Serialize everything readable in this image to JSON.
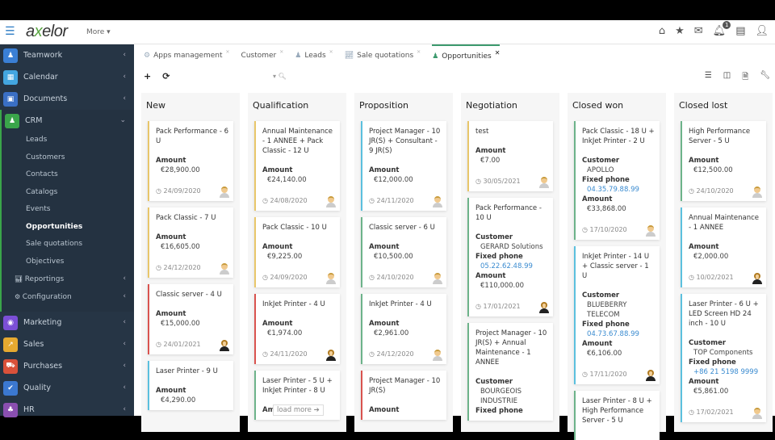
{
  "header": {
    "logo": "axelor",
    "more": "More",
    "notifications": "1"
  },
  "sidebar": {
    "top": [
      {
        "label": "Teamwork",
        "color": "#3a7fd5",
        "icon": "user-icon"
      },
      {
        "label": "Calendar",
        "color": "#43a6e0",
        "icon": "calendar-icon"
      },
      {
        "label": "Documents",
        "color": "#3a6fc4",
        "icon": "document-icon"
      }
    ],
    "crm": {
      "label": "CRM",
      "color": "#3aa54a",
      "items": [
        "Leads",
        "Customers",
        "Contacts",
        "Catalogs",
        "Events",
        "Opportunities",
        "Sale quotations",
        "Objectives"
      ],
      "active": "Opportunities",
      "groups": [
        "Reportings",
        "Configuration"
      ]
    },
    "bottom": [
      {
        "label": "Marketing",
        "color": "#7b4fd6",
        "icon": "marketing-icon"
      },
      {
        "label": "Sales",
        "color": "#e6a930",
        "icon": "chart-icon"
      },
      {
        "label": "Purchases",
        "color": "#d9513a",
        "icon": "cart-icon"
      },
      {
        "label": "Quality",
        "color": "#3b78d0",
        "icon": "check-icon"
      },
      {
        "label": "HR",
        "color": "#8a4fb0",
        "icon": "org-icon"
      }
    ]
  },
  "tabs": [
    {
      "label": "Apps management"
    },
    {
      "label": "Customer"
    },
    {
      "label": "Leads"
    },
    {
      "label": "Sale quotations"
    },
    {
      "label": "Opportunities",
      "active": true
    }
  ],
  "board": {
    "load_more": "load more",
    "columns": [
      {
        "title": "New",
        "cards": [
          {
            "title": "Pack Performance - 6 U",
            "color": "#e8c66a",
            "fields": [
              {
                "label": "Amount",
                "value": "€28,900.00"
              }
            ],
            "date": "24/09/2020",
            "avatar": "male"
          },
          {
            "title": "Pack Classic - 7 U",
            "color": "#e8c66a",
            "fields": [
              {
                "label": "Amount",
                "value": "€16,605.00"
              }
            ],
            "date": "24/12/2020",
            "avatar": "male"
          },
          {
            "title": "Classic server - 4 U",
            "color": "#d9534f",
            "fields": [
              {
                "label": "Amount",
                "value": "€15,000.00"
              }
            ],
            "date": "24/01/2021",
            "avatar": "female"
          },
          {
            "title": "Laser Printer - 9 U",
            "color": "#5bc0de",
            "fields": [
              {
                "label": "Amount",
                "value": "€4,290.00"
              }
            ],
            "date": "",
            "avatar": ""
          }
        ]
      },
      {
        "title": "Qualification",
        "cards": [
          {
            "title": "Annual Maintenance - 1 ANNEE + Pack Classic - 12 U",
            "color": "#e8c66a",
            "fields": [
              {
                "label": "Amount",
                "value": "€24,140.00"
              }
            ],
            "date": "24/08/2020",
            "avatar": "male"
          },
          {
            "title": "Pack Classic - 10 U",
            "color": "#e8c66a",
            "fields": [
              {
                "label": "Amount",
                "value": "€9,225.00"
              }
            ],
            "date": "24/09/2020",
            "avatar": "male"
          },
          {
            "title": "InkJet Printer - 4 U",
            "color": "#d9534f",
            "fields": [
              {
                "label": "Amount",
                "value": "€1,974.00"
              }
            ],
            "date": "24/11/2020",
            "avatar": "female"
          },
          {
            "title": "Laser Printer - 5 U + InkJet Printer - 8 U",
            "color": "#6db38a",
            "fields": [
              {
                "label": "Amount",
                "value": ""
              }
            ],
            "date": "",
            "avatar": ""
          }
        ]
      },
      {
        "title": "Proposition",
        "cards": [
          {
            "title": "Project Manager - 10 JR(S) + Consultant - 9 JR(S)",
            "color": "#5bc0de",
            "fields": [
              {
                "label": "Amount",
                "value": "€12,000.00"
              }
            ],
            "date": "24/11/2020",
            "avatar": "male"
          },
          {
            "title": "Classic server - 6 U",
            "color": "#6db38a",
            "fields": [
              {
                "label": "Amount",
                "value": "€10,500.00"
              }
            ],
            "date": "24/10/2020",
            "avatar": "male"
          },
          {
            "title": "InkJet Printer - 4 U",
            "color": "#6db38a",
            "fields": [
              {
                "label": "Amount",
                "value": "€2,961.00"
              }
            ],
            "date": "24/12/2020",
            "avatar": "male"
          },
          {
            "title": "Project Manager - 10 JR(S)",
            "color": "#d9534f",
            "fields": [
              {
                "label": "Amount",
                "value": ""
              }
            ],
            "date": "",
            "avatar": ""
          }
        ]
      },
      {
        "title": "Negotiation",
        "cards": [
          {
            "title": "test",
            "color": "#e8c66a",
            "fields": [
              {
                "label": "Amount",
                "value": "€7.00"
              }
            ],
            "date": "30/05/2021",
            "avatar": "male"
          },
          {
            "title": "Pack Performance - 10 U",
            "color": "#6db38a",
            "fields": [
              {
                "label": "Customer",
                "value": "GERARD Solutions"
              },
              {
                "label": "Fixed phone",
                "value": "05.22.62.48.99",
                "link": true
              },
              {
                "label": "Amount",
                "value": "€110,000.00"
              }
            ],
            "date": "17/01/2021",
            "avatar": "female"
          },
          {
            "title": "Project Manager - 10 JR(S) + Annual Maintenance - 1 ANNEE",
            "color": "#6db38a",
            "fields": [
              {
                "label": "Customer",
                "value": "BOURGEOIS INDUSTRIE"
              },
              {
                "label": "Fixed phone",
                "value": ""
              }
            ],
            "date": "",
            "avatar": ""
          }
        ]
      },
      {
        "title": "Closed won",
        "cards": [
          {
            "title": "Pack Classic - 18 U + InkJet Printer - 2 U",
            "color": "#6db38a",
            "fields": [
              {
                "label": "Customer",
                "value": "APOLLO"
              },
              {
                "label": "Fixed phone",
                "value": "04.35.79.88.99",
                "link": true
              },
              {
                "label": "Amount",
                "value": "€33,868.00"
              }
            ],
            "date": "17/10/2020",
            "avatar": "male"
          },
          {
            "title": "InkJet Printer - 14 U + Classic server - 1 U",
            "color": "#5bc0de",
            "fields": [
              {
                "label": "Customer",
                "value": "BLUEBERRY TELECOM"
              },
              {
                "label": "Fixed phone",
                "value": "04.73.67.88.99",
                "link": true
              },
              {
                "label": "Amount",
                "value": "€6,106.00"
              }
            ],
            "date": "17/11/2020",
            "avatar": "female"
          },
          {
            "title": "Laser Printer - 8 U + High Performance Server - 5 U",
            "color": "#6db38a",
            "fields": [],
            "date": "",
            "avatar": ""
          }
        ]
      },
      {
        "title": "Closed lost",
        "cards": [
          {
            "title": "High Performance Server - 5 U",
            "color": "#6db38a",
            "fields": [
              {
                "label": "Amount",
                "value": "€12,500.00"
              }
            ],
            "date": "24/10/2020",
            "avatar": "male"
          },
          {
            "title": "Annual Maintenance - 1 ANNEE",
            "color": "#5bc0de",
            "fields": [
              {
                "label": "Amount",
                "value": "€2,000.00"
              }
            ],
            "date": "10/02/2021",
            "avatar": "female"
          },
          {
            "title": "Laser Printer - 6 U + LED Screen HD 24 inch - 10 U",
            "color": "#5bc0de",
            "fields": [
              {
                "label": "Customer",
                "value": "TOP Components"
              },
              {
                "label": "Fixed phone",
                "value": "+86 21 5198 9999",
                "link": true
              },
              {
                "label": "Amount",
                "value": "€5,861.00"
              }
            ],
            "date": "17/02/2021",
            "avatar": "male"
          }
        ]
      }
    ]
  }
}
